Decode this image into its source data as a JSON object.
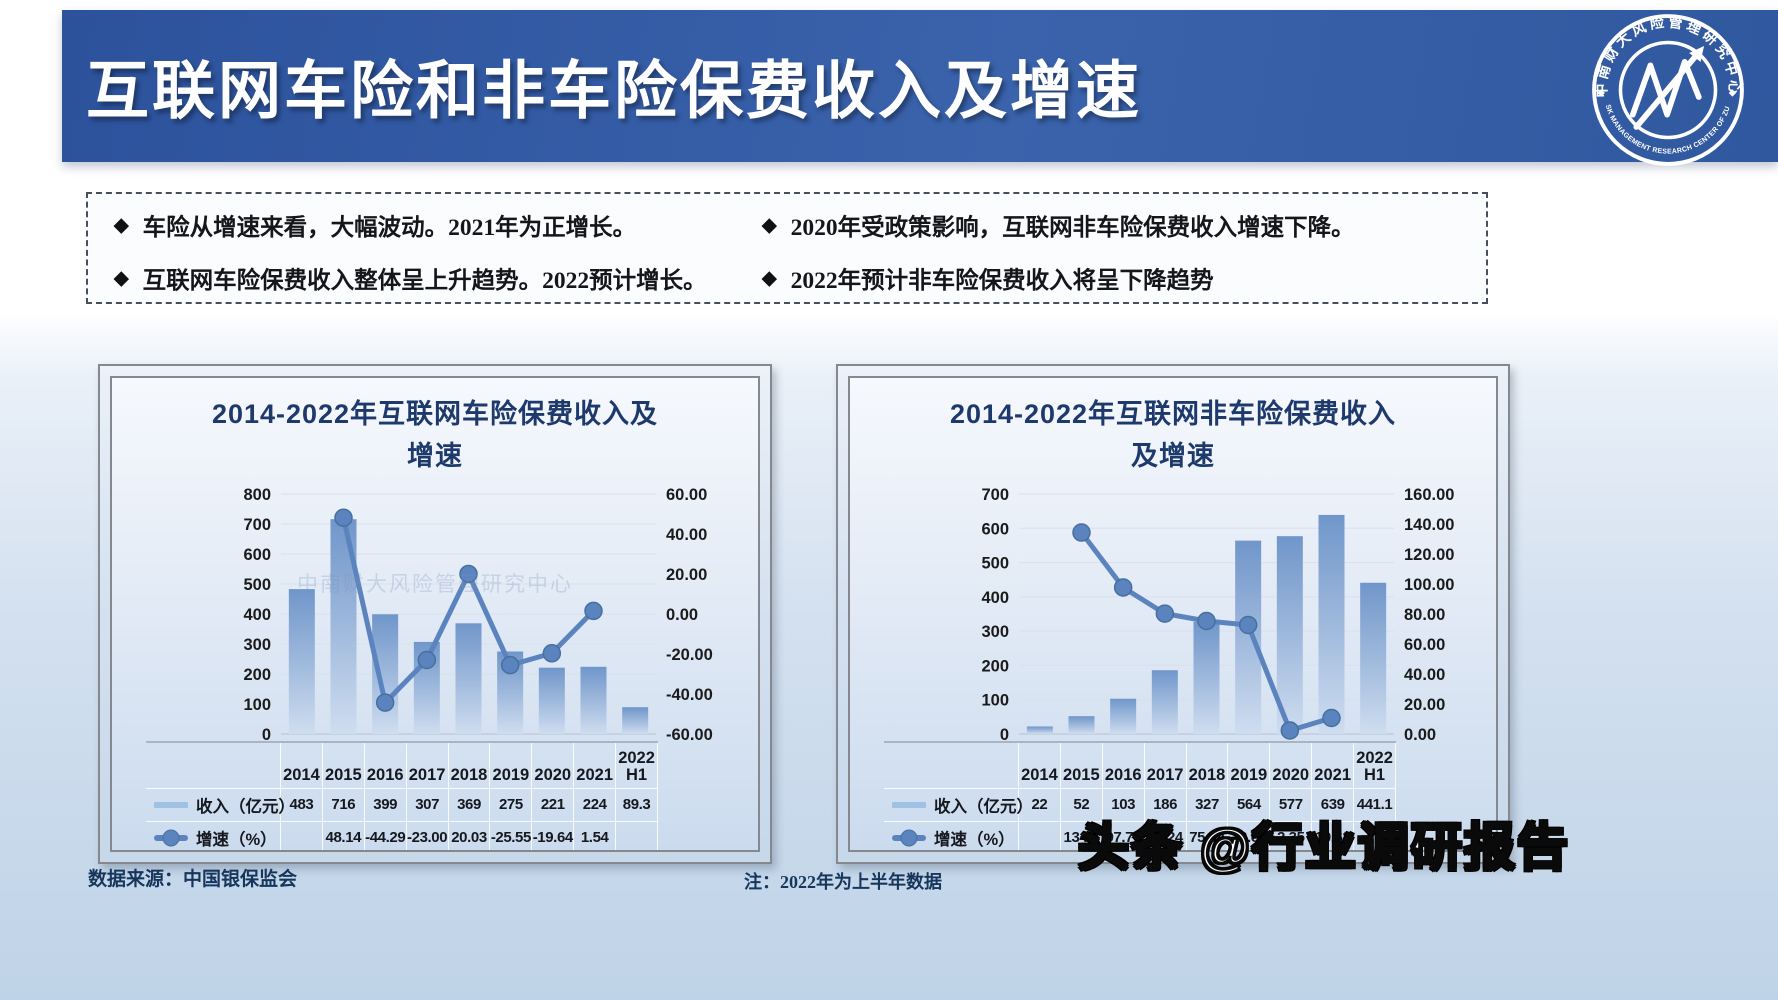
{
  "header": {
    "title": "互联网车险和非车险保费收入及增速"
  },
  "logo": {
    "top_text": "中南财大风险管理研究中心",
    "bottom_text": "RISK MANAGEMENT RESEARCH CENTER OF ZUEL"
  },
  "bullets": {
    "marker": "◆",
    "left": [
      "车险从增速来看，大幅波动。2021年为正增长。",
      "互联网车险保费收入整体呈上升趋势。2022预计增长。"
    ],
    "right": [
      "2020年受政策影响，互联网非车险保费收入增速下降。",
      "2022年预计非车险保费收入将呈下降趋势"
    ]
  },
  "inner_watermark": "中南财大风险管理研究中心",
  "footer": {
    "source": "数据来源：中国银保监会",
    "note": "注：2022年为上半年数据",
    "watermark": "头条 @行业调研报告"
  },
  "chart_data": [
    {
      "type": "bar",
      "title_line1": "2014-2022年互联网车险保费收入及",
      "title_line2": "增速",
      "categories": [
        "2014",
        "2015",
        "2016",
        "2017",
        "2018",
        "2019",
        "2020",
        "2021",
        "2022\nH1"
      ],
      "series": [
        {
          "name": "收入（亿元）",
          "kind": "bar",
          "values": [
            483,
            716,
            399,
            307,
            369,
            275,
            221,
            224,
            89.3
          ],
          "labels": [
            "483",
            "716",
            "399",
            "307",
            "369",
            "275",
            "221",
            "224",
            "89.3"
          ]
        },
        {
          "name": "增速（%）",
          "kind": "line",
          "values": [
            null,
            48.14,
            -44.29,
            -23.0,
            20.03,
            -25.55,
            -19.64,
            1.54,
            null
          ],
          "labels": [
            "",
            "48.14",
            "-44.29",
            "-23.00",
            "20.03",
            "-25.55",
            "-19.64",
            "1.54",
            ""
          ]
        }
      ],
      "left_axis": {
        "min": 0,
        "max": 800,
        "step": 100
      },
      "right_axis": {
        "min": -60,
        "max": 60,
        "step": 20,
        "decimals": 2
      },
      "grid": true,
      "legend_position": "table-left"
    },
    {
      "type": "bar",
      "title_line1": "2014-2022年互联网非车险保费收入",
      "title_line2": "及增速",
      "categories": [
        "2014",
        "2015",
        "2016",
        "2017",
        "2018",
        "2019",
        "2020",
        "2021",
        "2022\nH1"
      ],
      "series": [
        {
          "name": "收入（亿元）",
          "kind": "bar",
          "values": [
            22,
            52,
            103,
            186,
            327,
            564,
            577,
            639,
            441.1
          ],
          "labels": [
            "22",
            "52",
            "103",
            "186",
            "327",
            "564",
            "577",
            "639",
            "441.1"
          ]
        },
        {
          "name": "增速（%）",
          "kind": "line",
          "values": [
            null,
            134.3,
            97.7,
            80.24,
            75.34,
            72.69,
            2.35,
            10.68,
            null
          ],
          "labels": [
            "",
            "134.3",
            "97.70",
            "80.24",
            "75.34",
            "72.69",
            "2.35",
            "10.68",
            ""
          ]
        }
      ],
      "left_axis": {
        "min": 0,
        "max": 700,
        "step": 100
      },
      "right_axis": {
        "min": 0,
        "max": 160,
        "step": 20,
        "decimals": 2
      },
      "grid": true,
      "legend_position": "table-left"
    }
  ],
  "colors": {
    "banner": "#30589f",
    "title_text": "#1e3a6c",
    "bar_top": "#7096ca",
    "bar_bottom": "#cfddf0",
    "line": "#5b84bf",
    "marker_stroke": "#46709f"
  }
}
